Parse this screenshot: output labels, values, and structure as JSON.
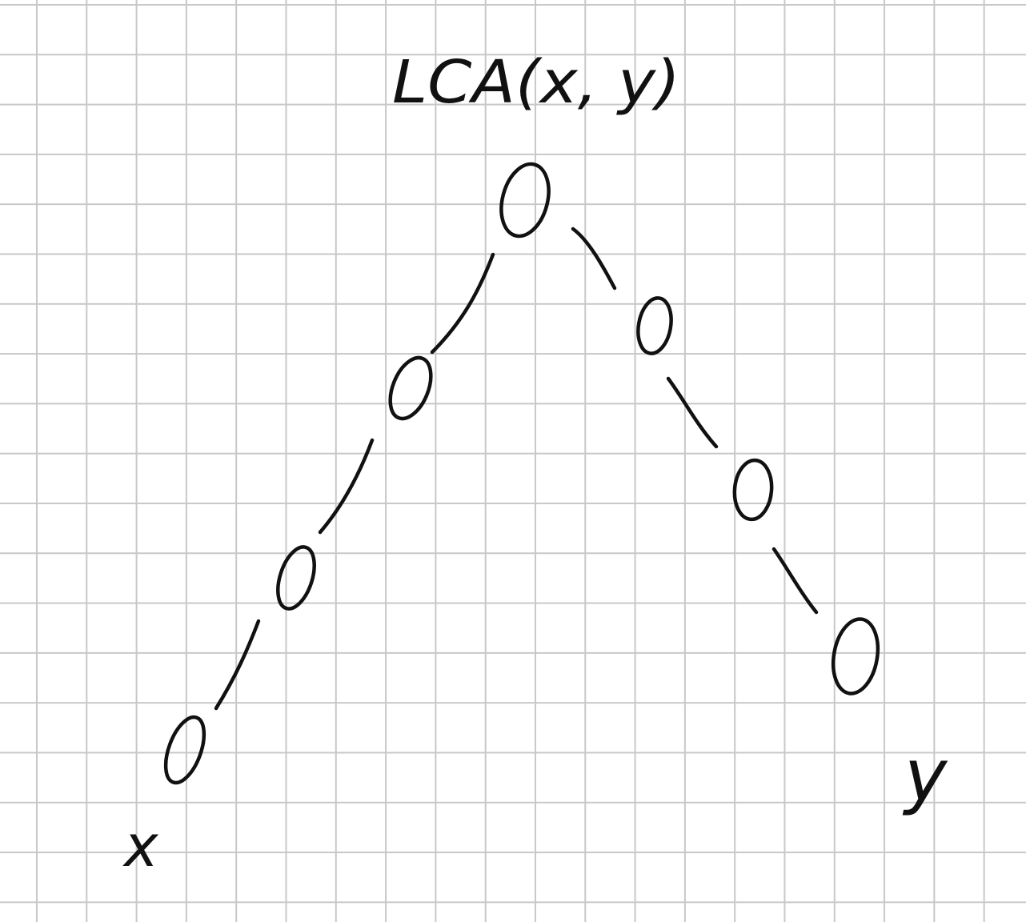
{
  "diagram": {
    "root_label": "LCA(x, y)",
    "left_leaf_label": "x",
    "right_leaf_label": "y",
    "nodes": [
      {
        "id": "root",
        "depth": 0
      },
      {
        "id": "l1",
        "depth": 1,
        "parent": "root"
      },
      {
        "id": "l2",
        "depth": 2,
        "parent": "l1"
      },
      {
        "id": "l3",
        "depth": 3,
        "parent": "l2"
      },
      {
        "id": "r1",
        "depth": 1,
        "parent": "root"
      },
      {
        "id": "r2",
        "depth": 2,
        "parent": "r1"
      },
      {
        "id": "r3",
        "depth": 3,
        "parent": "r2"
      }
    ],
    "ink_color": "#111111",
    "grid_color": "#c8c8c8"
  }
}
